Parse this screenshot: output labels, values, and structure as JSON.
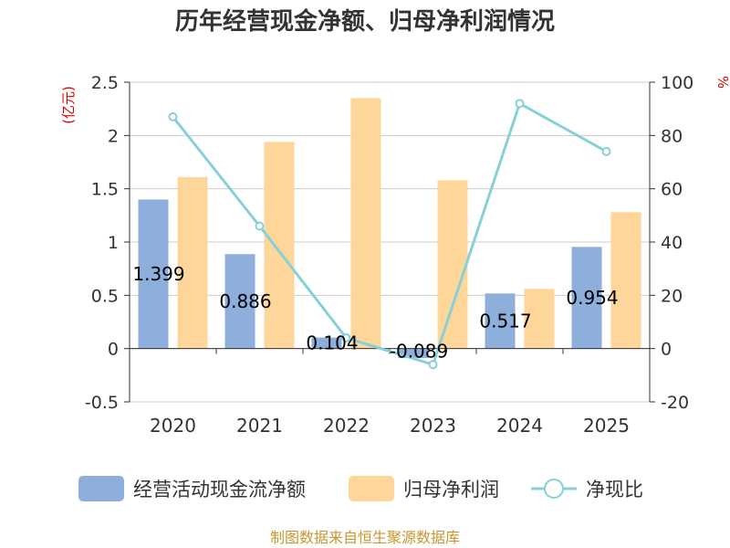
{
  "chart_data": {
    "type": "bar",
    "title": "历年经营现金净额、归母净利润情况",
    "categories": [
      "2020",
      "2021",
      "2022",
      "2023",
      "2024",
      "2025"
    ],
    "series": [
      {
        "name": "经营活动现金流净额",
        "kind": "bar",
        "axis": "left",
        "color": "#8eaedb",
        "values": [
          1.399,
          0.886,
          0.104,
          -0.089,
          0.517,
          0.954
        ],
        "labels": [
          "1.399",
          "0.886",
          "0.104",
          "-0.089",
          "0.517",
          "0.954"
        ]
      },
      {
        "name": "归母净利润",
        "kind": "bar",
        "axis": "left",
        "color": "#ffd699",
        "values": [
          1.61,
          1.94,
          2.35,
          1.58,
          0.56,
          1.28
        ]
      },
      {
        "name": "净现比",
        "kind": "line",
        "axis": "right",
        "color": "#88d0d8",
        "values": [
          87,
          46,
          4,
          -6,
          92,
          74
        ]
      }
    ],
    "left_axis": {
      "unit": "(亿元)",
      "ylim": [
        -0.5,
        2.5
      ],
      "ticks": [
        "-0.5",
        "0",
        "0.5",
        "1",
        "1.5",
        "2",
        "2.5"
      ]
    },
    "right_axis": {
      "unit": "%",
      "ylim": [
        -20,
        100
      ],
      "ticks": [
        "-20",
        "0",
        "20",
        "40",
        "60",
        "80",
        "100"
      ]
    },
    "legend": [
      {
        "label": "经营活动现金流净额",
        "type": "bar",
        "color": "#8eaedb"
      },
      {
        "label": "归母净利润",
        "type": "bar",
        "color": "#ffd699"
      },
      {
        "label": "净现比",
        "type": "line",
        "color": "#88d0d8"
      }
    ],
    "legend_position": "bottom",
    "source": "制图数据来自恒生聚源数据库"
  }
}
